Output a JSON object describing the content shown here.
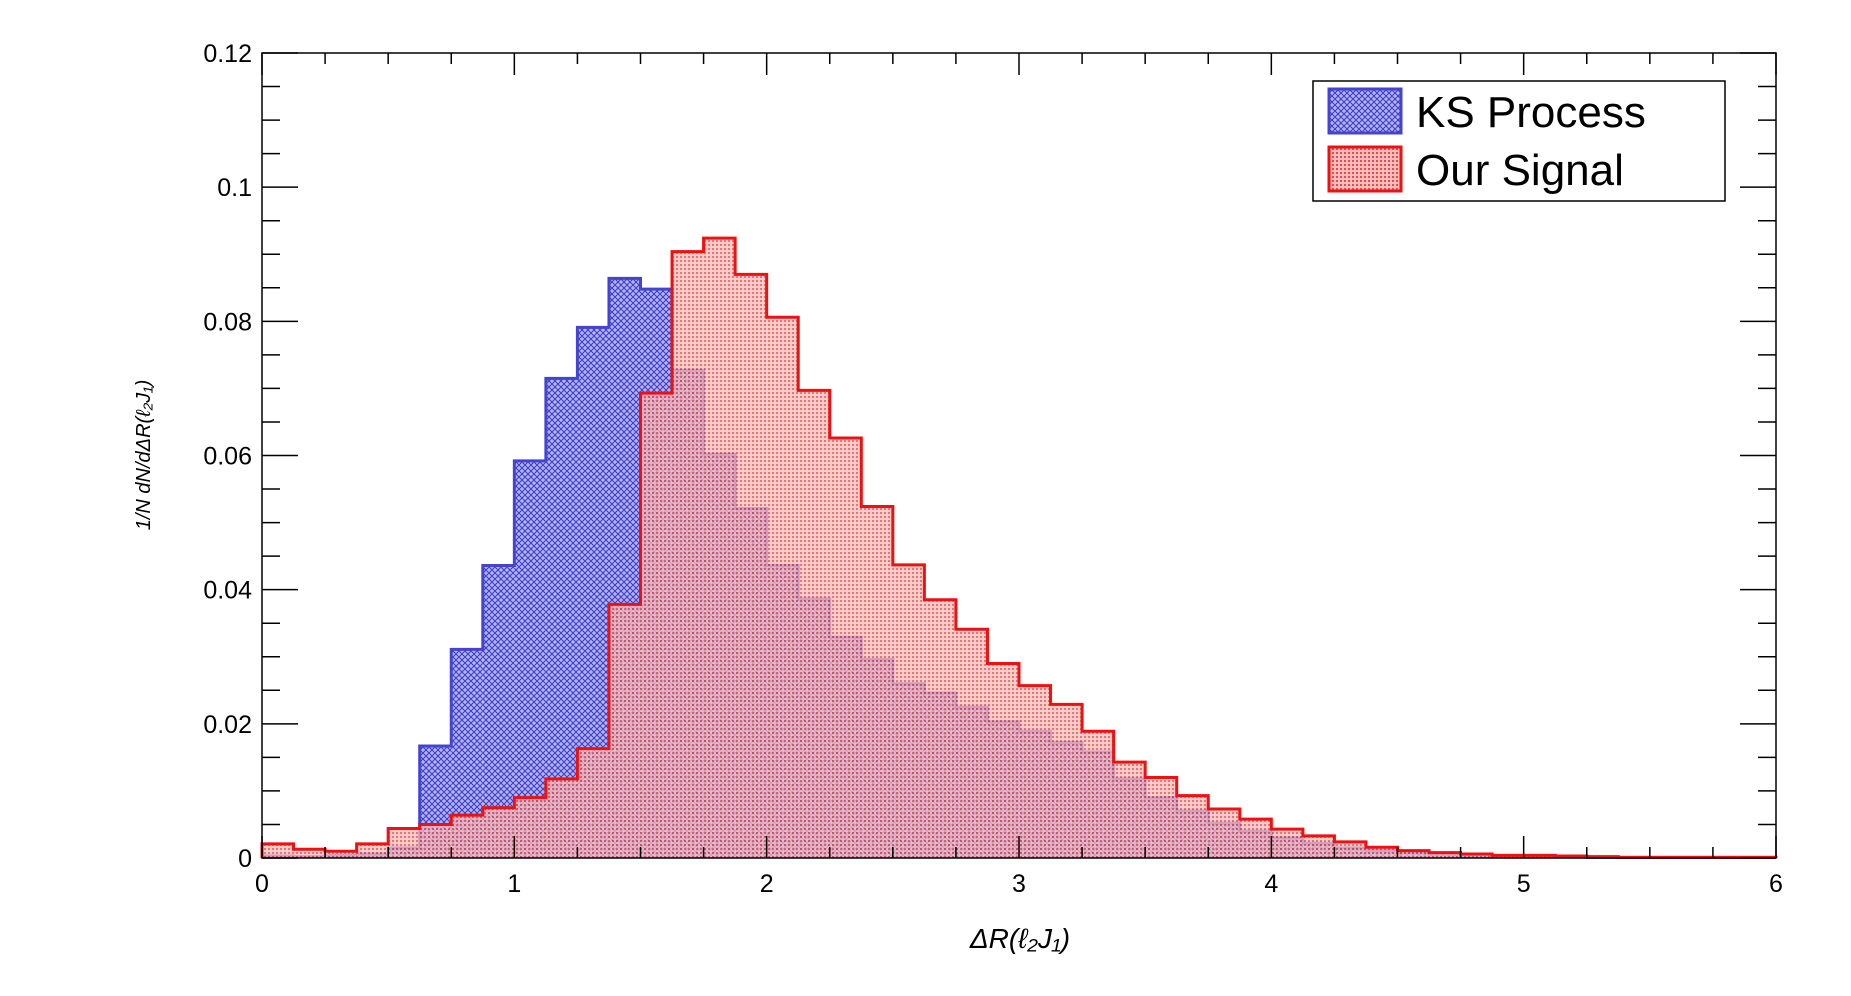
{
  "chart_data": {
    "type": "histogram",
    "title": "",
    "xlabel": "ΔR(ℓ₂J₁)",
    "ylabel": "1/N dN/dΔR(ℓ₂J₁)",
    "xlim": [
      0,
      6
    ],
    "ylim": [
      0,
      0.12
    ],
    "grid": false,
    "legend_position": "top-right",
    "bin_width": 0.125,
    "x_ticks": [
      "0",
      "1",
      "2",
      "3",
      "4",
      "5",
      "6"
    ],
    "y_ticks": [
      "0",
      "0.02",
      "0.04",
      "0.06",
      "0.08",
      "0.1",
      "0.12"
    ],
    "series": [
      {
        "name": "KS Process",
        "color": "#4444cc",
        "fill": "#9a9ae6",
        "values": [
          0.0003,
          0.0002,
          0.0004,
          0.0006,
          0.0015,
          0.0167,
          0.0311,
          0.0436,
          0.0592,
          0.0715,
          0.0791,
          0.0864,
          0.0848,
          0.0727,
          0.0602,
          0.0521,
          0.0436,
          0.0386,
          0.0329,
          0.0296,
          0.026,
          0.0246,
          0.0225,
          0.0203,
          0.0189,
          0.0172,
          0.0158,
          0.0118,
          0.009,
          0.007,
          0.0052,
          0.004,
          0.003,
          0.0022,
          0.0015,
          0.0011,
          0.0008,
          0.0006,
          0.0004,
          0.0003,
          0.0003,
          0.0002,
          0.0001,
          0.0001,
          0.0001,
          0.0001,
          0.0001,
          0.0001
        ]
      },
      {
        "name": "Our Signal",
        "color": "#ee1111",
        "fill": "#f4a6a6",
        "values": [
          0.0021,
          0.0013,
          0.001,
          0.0021,
          0.0044,
          0.005,
          0.0064,
          0.0075,
          0.009,
          0.0118,
          0.0163,
          0.0378,
          0.0693,
          0.0904,
          0.0924,
          0.087,
          0.0806,
          0.0697,
          0.0626,
          0.0524,
          0.0437,
          0.0385,
          0.0341,
          0.029,
          0.0257,
          0.0229,
          0.0189,
          0.0143,
          0.012,
          0.0093,
          0.0073,
          0.0058,
          0.0043,
          0.0033,
          0.0024,
          0.0016,
          0.0011,
          0.0008,
          0.0006,
          0.0004,
          0.0004,
          0.0003,
          0.0002,
          0.0001,
          0.0001,
          0.0001,
          0.0001,
          0.0001
        ]
      }
    ]
  }
}
